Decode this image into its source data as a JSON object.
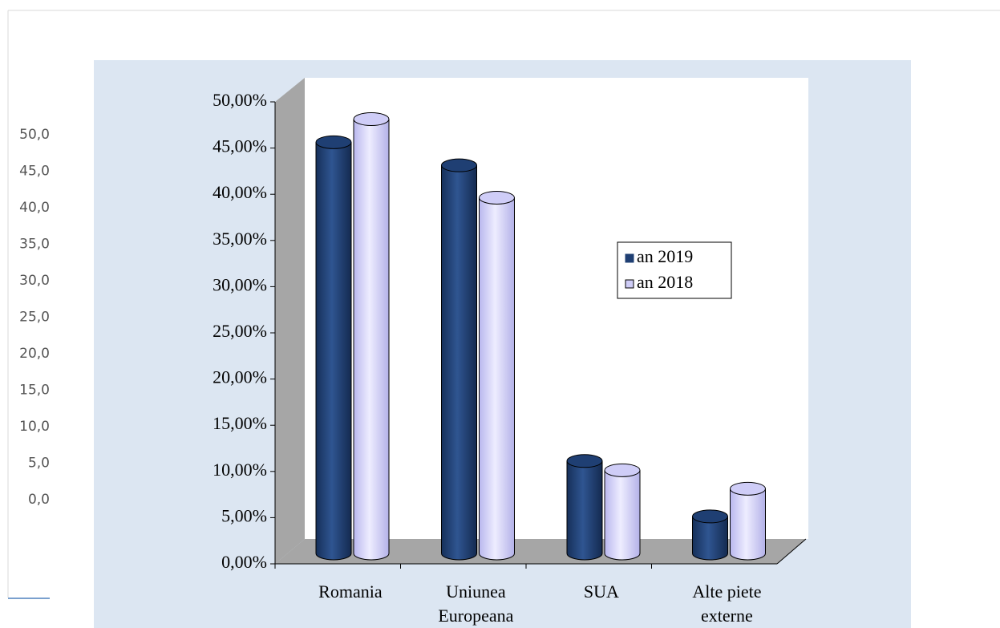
{
  "background_labels": [
    "50,0",
    "45,0",
    "40,0",
    "35,0",
    "30,0",
    "25,0",
    "20,0",
    "15,0",
    "10,0",
    "5,0",
    "0,0"
  ],
  "chart_data": {
    "type": "bar3d_cylinder",
    "categories": [
      "Romania",
      "Uniunea Europeana",
      "SUA",
      "Alte piete externe"
    ],
    "series": [
      {
        "name": "an 2019",
        "color": "#1f3f73",
        "values": [
          44.5,
          42,
          10,
          4
        ]
      },
      {
        "name": "an 2018",
        "color": "#cfcdf7",
        "values": [
          47,
          38.5,
          9,
          7
        ]
      }
    ],
    "ylim": [
      0,
      50
    ],
    "yticks": [
      {
        "value": 0,
        "label": "0,00%"
      },
      {
        "value": 5,
        "label": "5,00%"
      },
      {
        "value": 10,
        "label": "10,00%"
      },
      {
        "value": 15,
        "label": "15,00%"
      },
      {
        "value": 20,
        "label": "20,00%"
      },
      {
        "value": 25,
        "label": "25,00%"
      },
      {
        "value": 30,
        "label": "30,00%"
      },
      {
        "value": 35,
        "label": "35,00%"
      },
      {
        "value": 40,
        "label": "40,00%"
      },
      {
        "value": 45,
        "label": "45,00%"
      },
      {
        "value": 50,
        "label": "50,00%"
      }
    ],
    "legend_position": "right",
    "grid": false
  }
}
